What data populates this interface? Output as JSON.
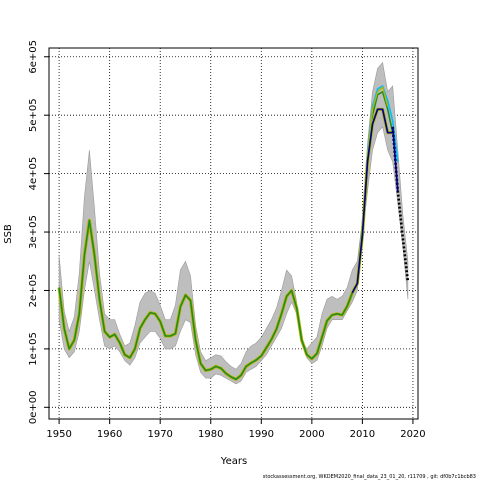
{
  "chart_data": {
    "type": "line",
    "xlabel": "Years",
    "ylabel": "SSB",
    "xlim": [
      1948,
      2021
    ],
    "ylim": [
      -20000,
      615000
    ],
    "x_ticks": [
      1950,
      1960,
      1970,
      1980,
      1990,
      2000,
      2010,
      2020
    ],
    "y_ticks": [
      0,
      100000,
      200000,
      300000,
      400000,
      500000,
      600000
    ],
    "y_tick_labels": [
      "0e+00",
      "1e+05",
      "2e+05",
      "3e+05",
      "4e+05",
      "5e+05",
      "6e+05"
    ],
    "grid": true,
    "footer": "stockassessment.org, WKDEM2020_final_data_23_01_20, r11709 , git: df0b7c1bcb83",
    "colors": {
      "band": "#bebebe",
      "band_edge": "#9a9a9a",
      "main_line": "#00008b",
      "green": "#228b22",
      "olive": "#b8b400",
      "cyan": "#00bfff",
      "grid": "#000000"
    },
    "confidence_band": {
      "x": [
        1950,
        1951,
        1952,
        1953,
        1954,
        1955,
        1956,
        1957,
        1958,
        1959,
        1960,
        1961,
        1962,
        1963,
        1964,
        1965,
        1966,
        1967,
        1968,
        1969,
        1970,
        1971,
        1972,
        1973,
        1974,
        1975,
        1976,
        1977,
        1978,
        1979,
        1980,
        1981,
        1982,
        1983,
        1984,
        1985,
        1986,
        1987,
        1988,
        1989,
        1990,
        1991,
        1992,
        1993,
        1994,
        1995,
        1996,
        1997,
        1998,
        1999,
        2000,
        2001,
        2002,
        2003,
        2004,
        2005,
        2006,
        2007,
        2008,
        2009,
        2010,
        2011,
        2012,
        2013,
        2014,
        2015,
        2016,
        2017,
        2018,
        2019
      ],
      "lower": [
        150000,
        100000,
        85000,
        95000,
        130000,
        200000,
        250000,
        200000,
        150000,
        105000,
        100000,
        105000,
        95000,
        80000,
        72000,
        85000,
        110000,
        120000,
        130000,
        130000,
        118000,
        100000,
        100000,
        105000,
        130000,
        150000,
        145000,
        90000,
        60000,
        50000,
        50000,
        57000,
        55000,
        50000,
        45000,
        40000,
        45000,
        60000,
        65000,
        70000,
        80000,
        90000,
        105000,
        120000,
        135000,
        160000,
        180000,
        160000,
        110000,
        85000,
        75000,
        80000,
        105000,
        135000,
        150000,
        150000,
        150000,
        165000,
        180000,
        200000,
        290000,
        370000,
        440000,
        470000,
        480000,
        440000,
        420000,
        350000,
        275000,
        185000
      ],
      "upper": [
        260000,
        165000,
        130000,
        155000,
        230000,
        360000,
        440000,
        340000,
        230000,
        160000,
        150000,
        150000,
        125000,
        105000,
        110000,
        140000,
        180000,
        195000,
        200000,
        195000,
        175000,
        150000,
        150000,
        175000,
        235000,
        250000,
        225000,
        140000,
        95000,
        80000,
        85000,
        90000,
        88000,
        78000,
        70000,
        65000,
        75000,
        95000,
        105000,
        110000,
        120000,
        135000,
        150000,
        170000,
        200000,
        235000,
        225000,
        180000,
        115000,
        100000,
        110000,
        120000,
        160000,
        185000,
        190000,
        185000,
        190000,
        205000,
        235000,
        250000,
        320000,
        450000,
        540000,
        580000,
        590000,
        540000,
        550000,
        440000,
        330000,
        250000
      ]
    },
    "series": [
      {
        "x": [
          1950,
          1951,
          1952,
          1953,
          1954,
          1955,
          1956,
          1957,
          1958,
          1959,
          1960,
          1961,
          1962,
          1963,
          1964,
          1965,
          1966,
          1967,
          1968,
          1969,
          1970,
          1971,
          1972,
          1973,
          1974,
          1975,
          1976,
          1977,
          1978,
          1979,
          1980,
          1981,
          1982,
          1983,
          1984,
          1985,
          1986,
          1987,
          1988,
          1989,
          1990,
          1991,
          1992,
          1993,
          1994,
          1995,
          1996,
          1997,
          1998,
          1999,
          2000,
          2001,
          2002,
          2003,
          2004,
          2005,
          2006,
          2007,
          2008,
          2009,
          2010,
          2011,
          2012,
          2013,
          2014,
          2015,
          2016,
          2017,
          2018,
          2019
        ],
        "values": [
          205000,
          135000,
          100000,
          115000,
          160000,
          260000,
          320000,
          260000,
          185000,
          130000,
          120000,
          125000,
          110000,
          90000,
          85000,
          100000,
          135000,
          150000,
          162000,
          160000,
          147000,
          122000,
          122000,
          126000,
          172000,
          192000,
          183000,
          115000,
          75000,
          63000,
          65000,
          70000,
          67000,
          58000,
          52000,
          48000,
          55000,
          70000,
          76000,
          81000,
          88000,
          102000,
          116000,
          134000,
          160000,
          190000,
          200000,
          170000,
          115000,
          90000,
          83000,
          92000,
          120000,
          148000,
          158000,
          160000,
          158000,
          173000,
          196000,
          212000,
          295000,
          420000,
          485000,
          510000,
          510000,
          470000,
          470000,
          370000,
          295000,
          215000
        ]
      },
      {
        "x": [
          2009,
          2010,
          2011,
          2012,
          2013,
          2014,
          2015,
          2016
        ],
        "values": [
          218000,
          310000,
          425000,
          500000,
          535000,
          540000,
          510000,
          470000
        ]
      },
      {
        "x": [
          2009,
          2010,
          2011,
          2012,
          2013,
          2014,
          2015,
          2016,
          2017
        ],
        "values": [
          220000,
          315000,
          435000,
          515000,
          545000,
          550000,
          525000,
          490000,
          420000
        ]
      },
      {
        "x": [
          2009,
          2010,
          2011,
          2012,
          2013,
          2014,
          2015
        ],
        "values": [
          216000,
          308000,
          430000,
          510000,
          540000,
          548000,
          515000
        ]
      },
      {
        "x": [
          2016,
          2017,
          2018,
          2019
        ],
        "values": [
          480000,
          370000,
          290000,
          215000
        ]
      }
    ]
  }
}
